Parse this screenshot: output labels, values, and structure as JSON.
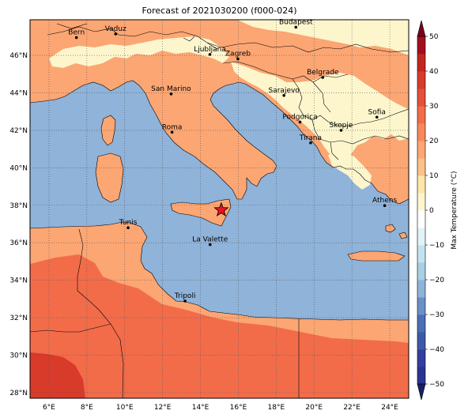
{
  "title": "Forecast of 2021030200 (f000-024)",
  "map": {
    "lon_range": [
      5,
      25
    ],
    "lat_range": [
      27.7,
      47.9
    ],
    "lon_ticks": [
      "6°E",
      "8°E",
      "10°E",
      "12°E",
      "14°E",
      "16°E",
      "18°E",
      "20°E",
      "22°E",
      "24°E"
    ],
    "lat_ticks": [
      "28°N",
      "30°N",
      "32°N",
      "34°N",
      "36°N",
      "38°N",
      "40°N",
      "42°N",
      "44°N",
      "46°N"
    ],
    "grid": true,
    "colors": {
      "sea": "#8fb3d9",
      "warm": "#fca673",
      "hot": "#f26c4a",
      "hotter": "#d93b2b",
      "cool": "#fdf6cd"
    }
  },
  "cities": [
    {
      "name": "Bern",
      "lon": 7.45,
      "lat": 46.95
    },
    {
      "name": "Vaduz",
      "lon": 9.52,
      "lat": 47.14
    },
    {
      "name": "Budapest",
      "lon": 19.04,
      "lat": 47.5
    },
    {
      "name": "Ljubljana",
      "lon": 14.5,
      "lat": 46.05
    },
    {
      "name": "Zagreb",
      "lon": 15.98,
      "lat": 45.81
    },
    {
      "name": "Belgrade",
      "lon": 20.46,
      "lat": 44.82
    },
    {
      "name": "San Marino",
      "lon": 12.45,
      "lat": 43.94
    },
    {
      "name": "Sarajevo",
      "lon": 18.41,
      "lat": 43.86
    },
    {
      "name": "Sofia",
      "lon": 23.32,
      "lat": 42.7
    },
    {
      "name": "Podgorica",
      "lon": 19.26,
      "lat": 42.44
    },
    {
      "name": "Skopje",
      "lon": 21.43,
      "lat": 42.0
    },
    {
      "name": "Roma",
      "lon": 12.5,
      "lat": 41.9
    },
    {
      "name": "Tirana",
      "lon": 19.82,
      "lat": 41.33
    },
    {
      "name": "Athens",
      "lon": 23.73,
      "lat": 37.98
    },
    {
      "name": "Tunis",
      "lon": 10.18,
      "lat": 36.8
    },
    {
      "name": "La Valette",
      "lon": 14.51,
      "lat": 35.9
    },
    {
      "name": "Tripoli",
      "lon": 13.19,
      "lat": 32.89
    }
  ],
  "marker": {
    "type": "star",
    "lon": 15.1,
    "lat": 37.75,
    "color": "#e8141e"
  },
  "colorbar": {
    "label": "Max Temperature (°C)",
    "ticks": [
      "50",
      "40",
      "30",
      "20",
      "10",
      "0",
      "−10",
      "−20",
      "−30",
      "−40",
      "−50"
    ],
    "range": [
      -50,
      50
    ],
    "step": 5,
    "colors_low_to_high": [
      "#2b3493",
      "#343fa0",
      "#3d5aa8",
      "#4a6fb6",
      "#6c8fc8",
      "#8fb3d9",
      "#a8cfe3",
      "#c3e2ee",
      "#e1f3f7",
      "#ffffff",
      "#fdf6cd",
      "#fde6a8",
      "#fcc08b",
      "#fca673",
      "#f9875c",
      "#f26c4a",
      "#e5503a",
      "#d93b2b",
      "#c1271e",
      "#a40e21"
    ]
  }
}
